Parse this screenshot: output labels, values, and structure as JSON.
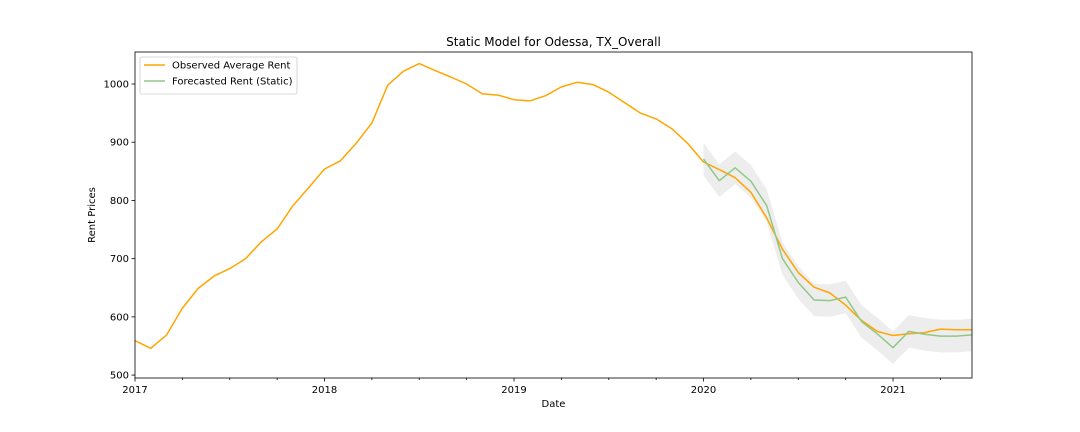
{
  "chart_data": {
    "type": "line",
    "title": "Static Model for Odessa, TX_Overall",
    "xlabel": "Date",
    "ylabel": "Rent Prices",
    "xlim": [
      "2017-01",
      "2021-06"
    ],
    "ylim": [
      495,
      1055
    ],
    "x_ticks": [
      "2017",
      "2018",
      "2019",
      "2020",
      "2021"
    ],
    "y_ticks": [
      500,
      600,
      700,
      800,
      900,
      1000
    ],
    "grid": false,
    "legend_position": "top-left",
    "series": [
      {
        "name": "Observed Average Rent",
        "color": "#ffa500",
        "x": [
          "2017-01",
          "2017-02",
          "2017-03",
          "2017-04",
          "2017-05",
          "2017-06",
          "2017-07",
          "2017-08",
          "2017-09",
          "2017-10",
          "2017-11",
          "2017-12",
          "2018-01",
          "2018-02",
          "2018-03",
          "2018-04",
          "2018-05",
          "2018-06",
          "2018-07",
          "2018-08",
          "2018-09",
          "2018-10",
          "2018-11",
          "2018-12",
          "2019-01",
          "2019-02",
          "2019-03",
          "2019-04",
          "2019-05",
          "2019-06",
          "2019-07",
          "2019-08",
          "2019-09",
          "2019-10",
          "2019-11",
          "2019-12",
          "2020-01",
          "2020-02",
          "2020-03",
          "2020-04",
          "2020-05",
          "2020-06",
          "2020-07",
          "2020-08",
          "2020-09",
          "2020-10",
          "2020-11",
          "2020-12",
          "2021-01",
          "2021-02",
          "2021-03",
          "2021-04",
          "2021-05",
          "2021-06"
        ],
        "values": [
          559,
          546,
          569,
          615,
          649,
          670,
          683,
          700,
          729,
          751,
          791,
          822,
          854,
          868,
          898,
          933,
          998,
          1022,
          1035,
          1023,
          1012,
          1000,
          983,
          981,
          973,
          971,
          980,
          995,
          1003,
          999,
          986,
          968,
          950,
          940,
          923,
          898,
          866,
          853,
          839,
          814,
          770,
          716,
          676,
          651,
          641,
          620,
          594,
          575,
          568,
          571,
          573,
          579,
          578,
          578
        ]
      },
      {
        "name": "Forecasted Rent (Static)",
        "color": "#90c888",
        "x": [
          "2020-01",
          "2020-02",
          "2020-03",
          "2020-04",
          "2020-05",
          "2020-06",
          "2020-07",
          "2020-08",
          "2020-09",
          "2020-10",
          "2020-11",
          "2020-12",
          "2021-01",
          "2021-02",
          "2021-03",
          "2021-04",
          "2021-05",
          "2021-06"
        ],
        "values": [
          871,
          834,
          856,
          833,
          791,
          700,
          659,
          629,
          628,
          634,
          592,
          571,
          547,
          575,
          570,
          567,
          567,
          569
        ],
        "lower": [
          843,
          806,
          828,
          805,
          763,
          672,
          631,
          601,
          600,
          606,
          564,
          543,
          519,
          547,
          542,
          539,
          539,
          541
        ],
        "upper": [
          899,
          862,
          884,
          861,
          819,
          728,
          687,
          657,
          656,
          662,
          620,
          599,
          575,
          603,
          598,
          595,
          595,
          597
        ]
      }
    ]
  }
}
